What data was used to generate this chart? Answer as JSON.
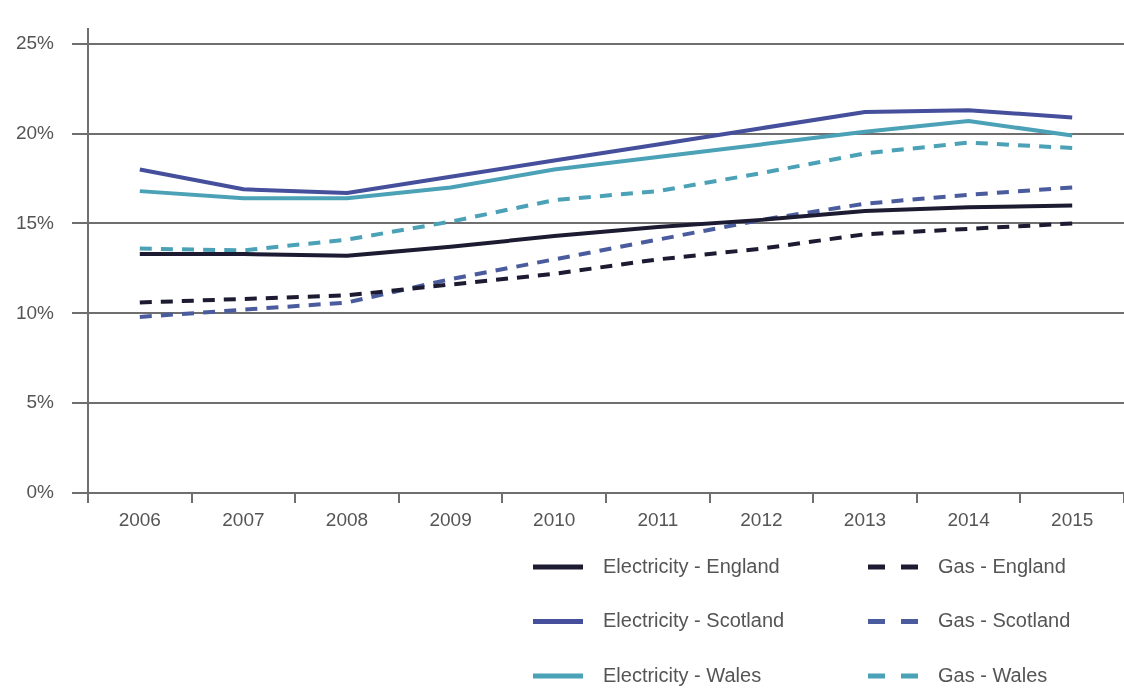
{
  "chart_data": {
    "type": "line",
    "categories": [
      "2006",
      "2007",
      "2008",
      "2009",
      "2010",
      "2011",
      "2012",
      "2013",
      "2014",
      "2015"
    ],
    "series": [
      {
        "name": "Electricity - England",
        "color": "#1c1b32",
        "line_style": "solid",
        "values": [
          13.3,
          13.3,
          13.2,
          13.7,
          14.3,
          14.8,
          15.2,
          15.7,
          15.9,
          16.0
        ]
      },
      {
        "name": "Electricity - Scotland",
        "color": "#454f9b",
        "line_style": "solid",
        "values": [
          18.0,
          16.9,
          16.7,
          17.6,
          18.5,
          19.4,
          20.3,
          21.2,
          21.3,
          20.9
        ]
      },
      {
        "name": "Electricity - Wales",
        "color": "#4ba2b7",
        "line_style": "solid",
        "values": [
          16.8,
          16.4,
          16.4,
          17.0,
          18.0,
          18.7,
          19.4,
          20.1,
          20.7,
          19.9
        ]
      },
      {
        "name": "Gas - England",
        "color": "#1c1b32",
        "line_style": "dashed",
        "values": [
          10.6,
          10.8,
          11.0,
          11.6,
          12.2,
          13.0,
          13.6,
          14.4,
          14.7,
          15.0
        ]
      },
      {
        "name": "Gas - Scotland",
        "color": "#4a5c9e",
        "line_style": "dashed",
        "values": [
          9.8,
          10.2,
          10.6,
          11.9,
          13.0,
          14.1,
          15.2,
          16.1,
          16.6,
          17.0
        ]
      },
      {
        "name": "Gas - Wales",
        "color": "#4ba2b7",
        "line_style": "dashed",
        "values": [
          13.6,
          13.5,
          14.1,
          15.1,
          16.3,
          16.8,
          17.8,
          18.9,
          19.5,
          19.2
        ]
      }
    ],
    "ylim": [
      0,
      25.8
    ],
    "yticks": [
      {
        "value": 0,
        "label": "0%"
      },
      {
        "value": 5,
        "label": "5%"
      },
      {
        "value": 10,
        "label": "10%"
      },
      {
        "value": 15,
        "label": "15%"
      },
      {
        "value": 20,
        "label": "20%"
      },
      {
        "value": 25,
        "label": "25%"
      }
    ],
    "grid": "y",
    "legend": "bottom right",
    "marker": "none"
  }
}
